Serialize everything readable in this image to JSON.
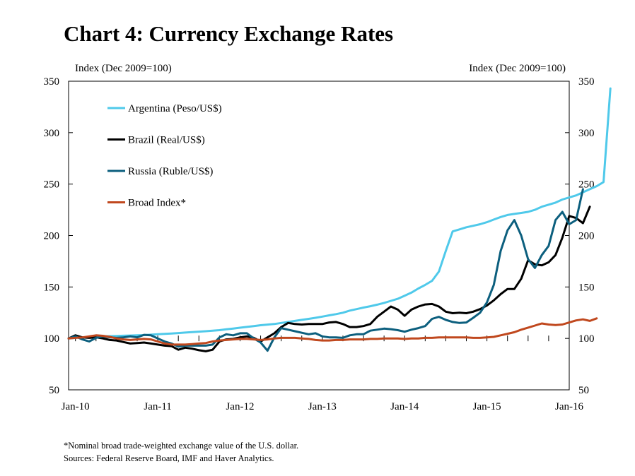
{
  "chart_data": {
    "type": "line",
    "title": "Chart 4: Currency Exchange Rates",
    "ylabel_left": "Index (Dec 2009=100)",
    "ylabel_right": "Index (Dec 2009=100)",
    "ylim": [
      50,
      350
    ],
    "yticks": [
      50,
      100,
      150,
      200,
      250,
      300,
      350
    ],
    "xlim": [
      "Dec 2009",
      "Jan 2016"
    ],
    "xticks": [
      "Jan-10",
      "Jan-11",
      "Jan-12",
      "Jan-13",
      "Jan-14",
      "Jan-15",
      "Jan-16"
    ],
    "grid": false,
    "legend_placement": "top-left",
    "start_month": "Dec 2009",
    "series": [
      {
        "name": "Argentina (Peso/US$)",
        "color": "#4fc9ea",
        "values": [
          100,
          100.5,
          101,
          101.3,
          101.6,
          102,
          102.2,
          102.4,
          102.6,
          102.8,
          103,
          103.2,
          103.6,
          104,
          104.4,
          104.8,
          105.2,
          105.7,
          106.1,
          106.6,
          107,
          107.5,
          108,
          108.8,
          109.6,
          110.4,
          111.2,
          112,
          112.8,
          113.4,
          114,
          115,
          116,
          117,
          118,
          119,
          120,
          121.2,
          122.4,
          123.6,
          125,
          127,
          128.5,
          130,
          131.3,
          132.8,
          134.5,
          136.5,
          138.5,
          141.5,
          144.5,
          148.5,
          152,
          156,
          165,
          185,
          204,
          206,
          208,
          209.5,
          211,
          213,
          215.5,
          218,
          220,
          221,
          222,
          223,
          225,
          228,
          230,
          232,
          235,
          237,
          239,
          242,
          245,
          248,
          252,
          343
        ]
      },
      {
        "name": "Brazil (Real/US$)",
        "color": "#000000",
        "values": [
          100,
          103,
          101,
          100.5,
          101,
          100,
          98.5,
          98,
          96.5,
          95,
          95.5,
          96,
          95,
          94,
          93,
          92.5,
          89,
          91,
          90,
          88.5,
          87.5,
          89,
          97,
          99,
          99.5,
          101,
          102,
          100.5,
          97,
          101,
          105,
          111,
          115,
          114,
          113.5,
          114,
          114,
          114,
          115.5,
          116,
          114,
          111,
          111,
          112,
          114,
          121,
          126,
          131,
          128,
          122,
          128,
          131,
          133,
          133.5,
          131,
          126,
          124.5,
          125,
          124.5,
          126,
          128.5,
          132,
          137,
          143,
          148,
          148,
          158,
          176,
          172,
          171,
          174,
          181,
          198,
          219,
          217,
          212,
          228
        ]
      },
      {
        "name": "Russia (Ruble/US$)",
        "color": "#0c5f7e",
        "values": [
          100,
          102,
          99,
          97,
          100.5,
          102,
          101,
          100.5,
          101,
          102,
          101,
          103.5,
          103,
          100,
          97,
          95,
          92,
          93,
          93,
          93,
          93,
          94,
          101,
          104,
          103,
          105,
          105,
          100,
          96,
          88,
          101,
          110,
          108.5,
          107,
          105.5,
          104,
          105,
          102,
          101,
          101,
          100.5,
          103,
          104,
          104,
          107.5,
          108.5,
          109.5,
          109,
          108,
          106.5,
          108.5,
          110,
          112,
          119,
          121,
          118,
          116,
          115,
          115.5,
          120,
          125,
          135,
          152,
          185,
          205,
          215,
          200,
          177,
          168.5,
          181,
          190,
          215,
          223,
          211,
          215,
          245
        ]
      },
      {
        "name": "Broad Index*",
        "color": "#c0481e",
        "values": [
          100,
          100.5,
          101,
          102,
          103,
          102.5,
          101.5,
          100,
          99,
          98.5,
          99,
          99.5,
          99,
          97,
          95,
          94,
          94,
          94,
          94.5,
          95,
          95.5,
          97,
          98,
          98.5,
          99,
          99.5,
          99.5,
          99,
          98.5,
          99,
          100,
          100.5,
          100.5,
          100.5,
          100,
          99.5,
          98.5,
          98,
          98,
          98.5,
          98.5,
          99,
          99,
          99,
          99.5,
          99.5,
          100,
          100,
          100,
          99.5,
          100,
          100,
          100.5,
          100.5,
          101,
          101,
          101,
          101,
          101,
          100.5,
          100.5,
          101,
          101.5,
          103,
          104.5,
          106,
          108.5,
          110.5,
          112.5,
          114.5,
          113.5,
          113,
          113.5,
          115.5,
          117.5,
          118.5,
          117,
          119.5
        ]
      }
    ]
  },
  "notes": {
    "footnote": "*Nominal broad trade-weighted exchange value of the U.S. dollar.",
    "sources": "Sources: Federal Reserve Board, IMF and Haver Analytics."
  }
}
